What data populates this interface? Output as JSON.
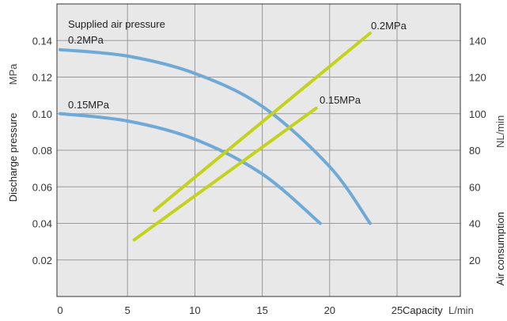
{
  "colors": {
    "plot_background": "#e8e8e8",
    "grid": "#9a9a9a",
    "frame": "#333333",
    "discharge_curve": "#6fa9d6",
    "air_consumption_curve": "#c3d21a"
  },
  "chart_data": {
    "type": "line",
    "x_axis": {
      "label": "Capacity",
      "unit": "L/min",
      "range": [
        0,
        25
      ],
      "ticks": [
        "0",
        "5",
        "10",
        "15",
        "20",
        "25"
      ],
      "tick_values": [
        0,
        5,
        10,
        15,
        20,
        25
      ],
      "grid_every": 5
    },
    "y_axis_left": {
      "label": "Discharge pressure",
      "unit": "MPa",
      "range": [
        0,
        0.16
      ],
      "ticks": [
        "0.02",
        "0.04",
        "0.06",
        "0.08",
        "0.10",
        "0.12",
        "0.14"
      ],
      "tick_values": [
        0.02,
        0.04,
        0.06,
        0.08,
        0.1,
        0.12,
        0.14
      ]
    },
    "y_axis_right": {
      "label": "Air consumption",
      "unit": "NL/min",
      "range": [
        0,
        160
      ],
      "ticks": [
        "20",
        "40",
        "60",
        "80",
        "100",
        "120",
        "140"
      ],
      "tick_values": [
        20,
        40,
        60,
        80,
        100,
        120,
        140
      ]
    },
    "grid": true,
    "legend_title": "Supplied air pressure",
    "series": [
      {
        "name": "0.2MPa",
        "kind": "discharge_pressure",
        "axis": "left",
        "color": "#6fa9d6",
        "points": [
          [
            0,
            0.135
          ],
          [
            5,
            0.1315
          ],
          [
            10,
            0.122
          ],
          [
            15,
            0.104
          ],
          [
            20,
            0.071
          ],
          [
            23,
            0.04
          ]
        ]
      },
      {
        "name": "0.15MPa",
        "kind": "discharge_pressure",
        "axis": "left",
        "color": "#6fa9d6",
        "points": [
          [
            0,
            0.1
          ],
          [
            5,
            0.096
          ],
          [
            10,
            0.086
          ],
          [
            15,
            0.067
          ],
          [
            19.3,
            0.04
          ]
        ]
      },
      {
        "name": "0.2MPa",
        "kind": "air_consumption",
        "axis": "right",
        "color": "#c3d21a",
        "points": [
          [
            7,
            47
          ],
          [
            23,
            144
          ]
        ]
      },
      {
        "name": "0.15MPa",
        "kind": "air_consumption",
        "axis": "right",
        "color": "#c3d21a",
        "points": [
          [
            5.5,
            31
          ],
          [
            19,
            103
          ]
        ]
      }
    ],
    "annotations": [
      {
        "text": "Supplied air pressure",
        "near": "top-left"
      },
      {
        "text": "0.2MPa",
        "near": "discharge 0.2MPa curve start"
      },
      {
        "text": "0.15MPa",
        "near": "discharge 0.15MPa curve start"
      },
      {
        "text": "0.2MPa",
        "near": "air consumption 0.2MPa line end"
      },
      {
        "text": "0.15MPa",
        "near": "air consumption 0.15MPa line end"
      }
    ]
  }
}
